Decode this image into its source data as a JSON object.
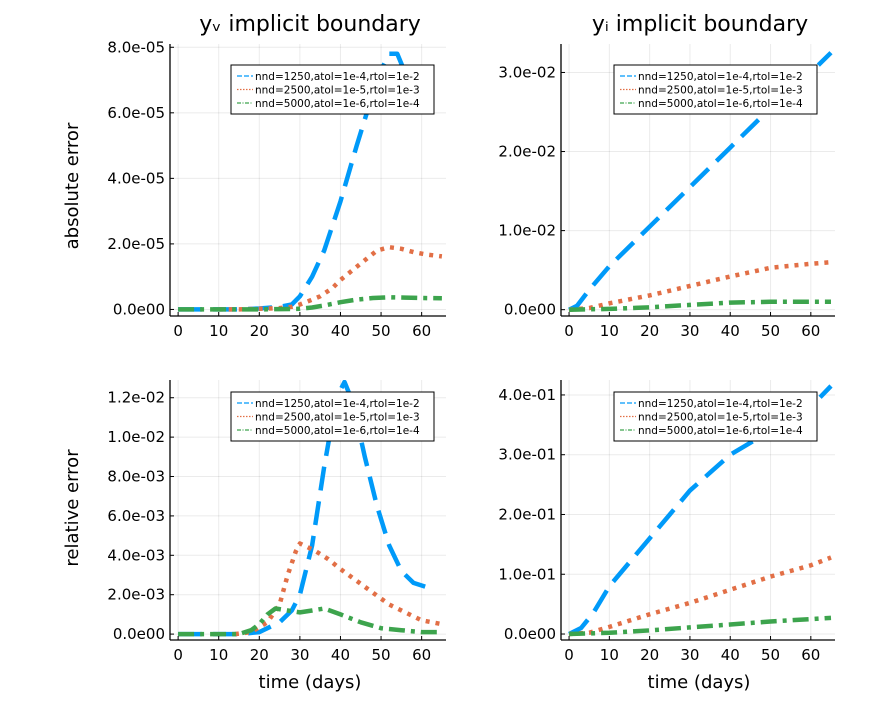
{
  "figure": {
    "col_titles": [
      "yᵥ implicit boundary",
      "yᵢ implicit boundary"
    ],
    "row_ylabels": [
      "absolute error",
      "relative error"
    ],
    "xlabel": "time (days)"
  },
  "chart_data": [
    {
      "type": "line",
      "title": "yᵥ implicit boundary",
      "xlabel": "",
      "ylabel": "absolute error",
      "xlim": [
        -2,
        66
      ],
      "ylim": [
        -2e-06,
        8.1e-05
      ],
      "xticks": [
        0,
        10,
        20,
        30,
        40,
        50,
        60
      ],
      "xtick_labels": [
        "0",
        "10",
        "20",
        "30",
        "40",
        "50",
        "60"
      ],
      "yticks": [
        0,
        2e-05,
        4e-05,
        6e-05,
        8e-05
      ],
      "ytick_labels": [
        "0.0e00",
        "2.0e-05",
        "4.0e-05",
        "6.0e-05",
        "8.0e-05"
      ],
      "grid": true,
      "legend_position": "top-right",
      "series": [
        {
          "name": "nnd=1250,atol=1e-4,rtol=1e-2",
          "color": "#009af9",
          "style": "dash",
          "x": [
            0,
            10,
            15,
            20,
            25,
            28,
            30,
            33,
            36,
            40,
            44,
            48,
            50,
            52,
            54,
            56,
            58,
            61
          ],
          "y": [
            0,
            0,
            0,
            3e-07,
            8e-07,
            1.5e-06,
            4e-06,
            1e-05,
            1.8e-05,
            3.3e-05,
            5e-05,
            6.6e-05,
            7.3e-05,
            7.8e-05,
            7.8e-05,
            7.2e-05,
            6.6e-05,
            6e-05
          ]
        },
        {
          "name": "nnd=2500,atol=1e-5,rtol=1e-3",
          "color": "#e26f46",
          "style": "dot",
          "x": [
            10,
            15,
            20,
            25,
            28,
            30,
            32,
            35,
            38,
            40,
            43,
            46,
            49,
            52,
            55,
            58,
            61,
            65
          ],
          "y": [
            0,
            0,
            2e-07,
            4e-07,
            8e-07,
            1.5e-06,
            2.5e-06,
            4e-06,
            6.5e-06,
            9e-06,
            1.2e-05,
            1.5e-05,
            1.8e-05,
            1.9e-05,
            1.85e-05,
            1.75e-05,
            1.68e-05,
            1.62e-05
          ]
        },
        {
          "name": "nnd=5000,atol=1e-6,rtol=1e-4",
          "color": "#3da44d",
          "style": "dashdot",
          "x": [
            0,
            10,
            20,
            25,
            30,
            33,
            36,
            40,
            44,
            48,
            52,
            56,
            60,
            65
          ],
          "y": [
            0,
            0,
            0,
            1e-07,
            2e-07,
            6e-07,
            1.2e-06,
            2.2e-06,
            3e-06,
            3.5e-06,
            3.7e-06,
            3.6e-06,
            3.5e-06,
            3.4e-06
          ]
        }
      ]
    },
    {
      "type": "line",
      "title": "yᵢ implicit boundary",
      "xlabel": "",
      "ylabel": "",
      "xlim": [
        -2,
        66
      ],
      "ylim": [
        -0.0008,
        0.0336
      ],
      "xticks": [
        0,
        10,
        20,
        30,
        40,
        50,
        60
      ],
      "xtick_labels": [
        "0",
        "10",
        "20",
        "30",
        "40",
        "50",
        "60"
      ],
      "yticks": [
        0,
        0.01,
        0.02,
        0.03
      ],
      "ytick_labels": [
        "0.0e00",
        "1.0e-02",
        "2.0e-02",
        "3.0e-02"
      ],
      "grid": true,
      "legend_position": "top-right",
      "series": [
        {
          "name": "nnd=1250,atol=1e-4,rtol=1e-2",
          "color": "#009af9",
          "style": "dash",
          "x": [
            0,
            2,
            5,
            10,
            20,
            30,
            40,
            50,
            60,
            65
          ],
          "y": [
            0,
            0.0005,
            0.0025,
            0.0055,
            0.0105,
            0.0155,
            0.0205,
            0.0255,
            0.03,
            0.0325
          ]
        },
        {
          "name": "nnd=2500,atol=1e-5,rtol=1e-3",
          "color": "#e26f46",
          "style": "dot",
          "x": [
            0,
            5,
            10,
            20,
            30,
            40,
            50,
            60,
            65
          ],
          "y": [
            0,
            0.0002,
            0.0008,
            0.0018,
            0.003,
            0.0042,
            0.0053,
            0.0058,
            0.006
          ]
        },
        {
          "name": "nnd=5000,atol=1e-6,rtol=1e-4",
          "color": "#3da44d",
          "style": "dashdot",
          "x": [
            0,
            10,
            20,
            30,
            40,
            50,
            60,
            65
          ],
          "y": [
            0,
            0.0001,
            0.0003,
            0.0006,
            0.0009,
            0.001,
            0.001,
            0.001
          ]
        }
      ]
    },
    {
      "type": "line",
      "title": "",
      "xlabel": "time (days)",
      "ylabel": "relative error",
      "xlim": [
        -2,
        66
      ],
      "ylim": [
        -0.0003,
        0.0129
      ],
      "xticks": [
        0,
        10,
        20,
        30,
        40,
        50,
        60
      ],
      "xtick_labels": [
        "0",
        "10",
        "20",
        "30",
        "40",
        "50",
        "60"
      ],
      "yticks": [
        0,
        0.002,
        0.004,
        0.006,
        0.008,
        0.01,
        0.012
      ],
      "ytick_labels": [
        "0.0e00",
        "2.0e-03",
        "4.0e-03",
        "6.0e-03",
        "8.0e-03",
        "1.0e-02",
        "1.2e-02"
      ],
      "grid": true,
      "legend_position": "top-right",
      "series": [
        {
          "name": "nnd=1250,atol=1e-4,rtol=1e-2",
          "color": "#009af9",
          "style": "dash",
          "x": [
            0,
            15,
            20,
            25,
            28,
            30,
            33,
            36,
            39,
            41,
            43,
            46,
            49,
            52,
            55,
            58,
            61
          ],
          "y": [
            0,
            0,
            0.0001,
            0.0006,
            0.0012,
            0.002,
            0.0045,
            0.0085,
            0.012,
            0.0128,
            0.0118,
            0.009,
            0.0065,
            0.0045,
            0.0032,
            0.0026,
            0.0024
          ]
        },
        {
          "name": "nnd=2500,atol=1e-5,rtol=1e-3",
          "color": "#e26f46",
          "style": "dot",
          "x": [
            14,
            18,
            22,
            25,
            27,
            29,
            30,
            32,
            34,
            37,
            40,
            44,
            48,
            52,
            56,
            60,
            65
          ],
          "y": [
            0,
            0.0001,
            0.0006,
            0.0015,
            0.003,
            0.0042,
            0.0046,
            0.0044,
            0.0042,
            0.0038,
            0.0033,
            0.0027,
            0.0021,
            0.0015,
            0.0011,
            0.0007,
            0.0005
          ]
        },
        {
          "name": "nnd=5000,atol=1e-6,rtol=1e-4",
          "color": "#3da44d",
          "style": "dashdot",
          "x": [
            0,
            15,
            18,
            20,
            22,
            24,
            27,
            30,
            33,
            36,
            40,
            45,
            50,
            55,
            60,
            65
          ],
          "y": [
            0,
            0,
            0.0002,
            0.0005,
            0.001,
            0.0013,
            0.0012,
            0.0011,
            0.0012,
            0.0013,
            0.001,
            0.0006,
            0.0003,
            0.0002,
            0.0001,
            0.0001
          ]
        }
      ]
    },
    {
      "type": "line",
      "title": "",
      "xlabel": "time (days)",
      "ylabel": "",
      "xlim": [
        -2,
        66
      ],
      "ylim": [
        -0.01,
        0.425
      ],
      "xticks": [
        0,
        10,
        20,
        30,
        40,
        50,
        60
      ],
      "xtick_labels": [
        "0",
        "10",
        "20",
        "30",
        "40",
        "50",
        "60"
      ],
      "yticks": [
        0,
        0.1,
        0.2,
        0.3,
        0.4
      ],
      "ytick_labels": [
        "0.0e00",
        "1.0e-01",
        "2.0e-01",
        "3.0e-01",
        "4.0e-01"
      ],
      "grid": true,
      "legend_position": "top-right",
      "series": [
        {
          "name": "nnd=1250,atol=1e-4,rtol=1e-2",
          "color": "#009af9",
          "style": "dash",
          "x": [
            0,
            3,
            6,
            10,
            15,
            20,
            25,
            30,
            35,
            40,
            50,
            60,
            65
          ],
          "y": [
            0,
            0.01,
            0.035,
            0.08,
            0.12,
            0.16,
            0.2,
            0.24,
            0.27,
            0.3,
            0.34,
            0.38,
            0.415
          ]
        },
        {
          "name": "nnd=2500,atol=1e-5,rtol=1e-3",
          "color": "#e26f46",
          "style": "dot",
          "x": [
            0,
            5,
            10,
            20,
            30,
            40,
            50,
            60,
            65
          ],
          "y": [
            0,
            0.002,
            0.012,
            0.033,
            0.052,
            0.074,
            0.096,
            0.115,
            0.128
          ]
        },
        {
          "name": "nnd=5000,atol=1e-6,rtol=1e-4",
          "color": "#3da44d",
          "style": "dashdot",
          "x": [
            0,
            5,
            10,
            20,
            30,
            40,
            50,
            60,
            65
          ],
          "y": [
            0,
            0.001,
            0.002,
            0.006,
            0.011,
            0.016,
            0.021,
            0.025,
            0.027
          ]
        }
      ]
    }
  ]
}
